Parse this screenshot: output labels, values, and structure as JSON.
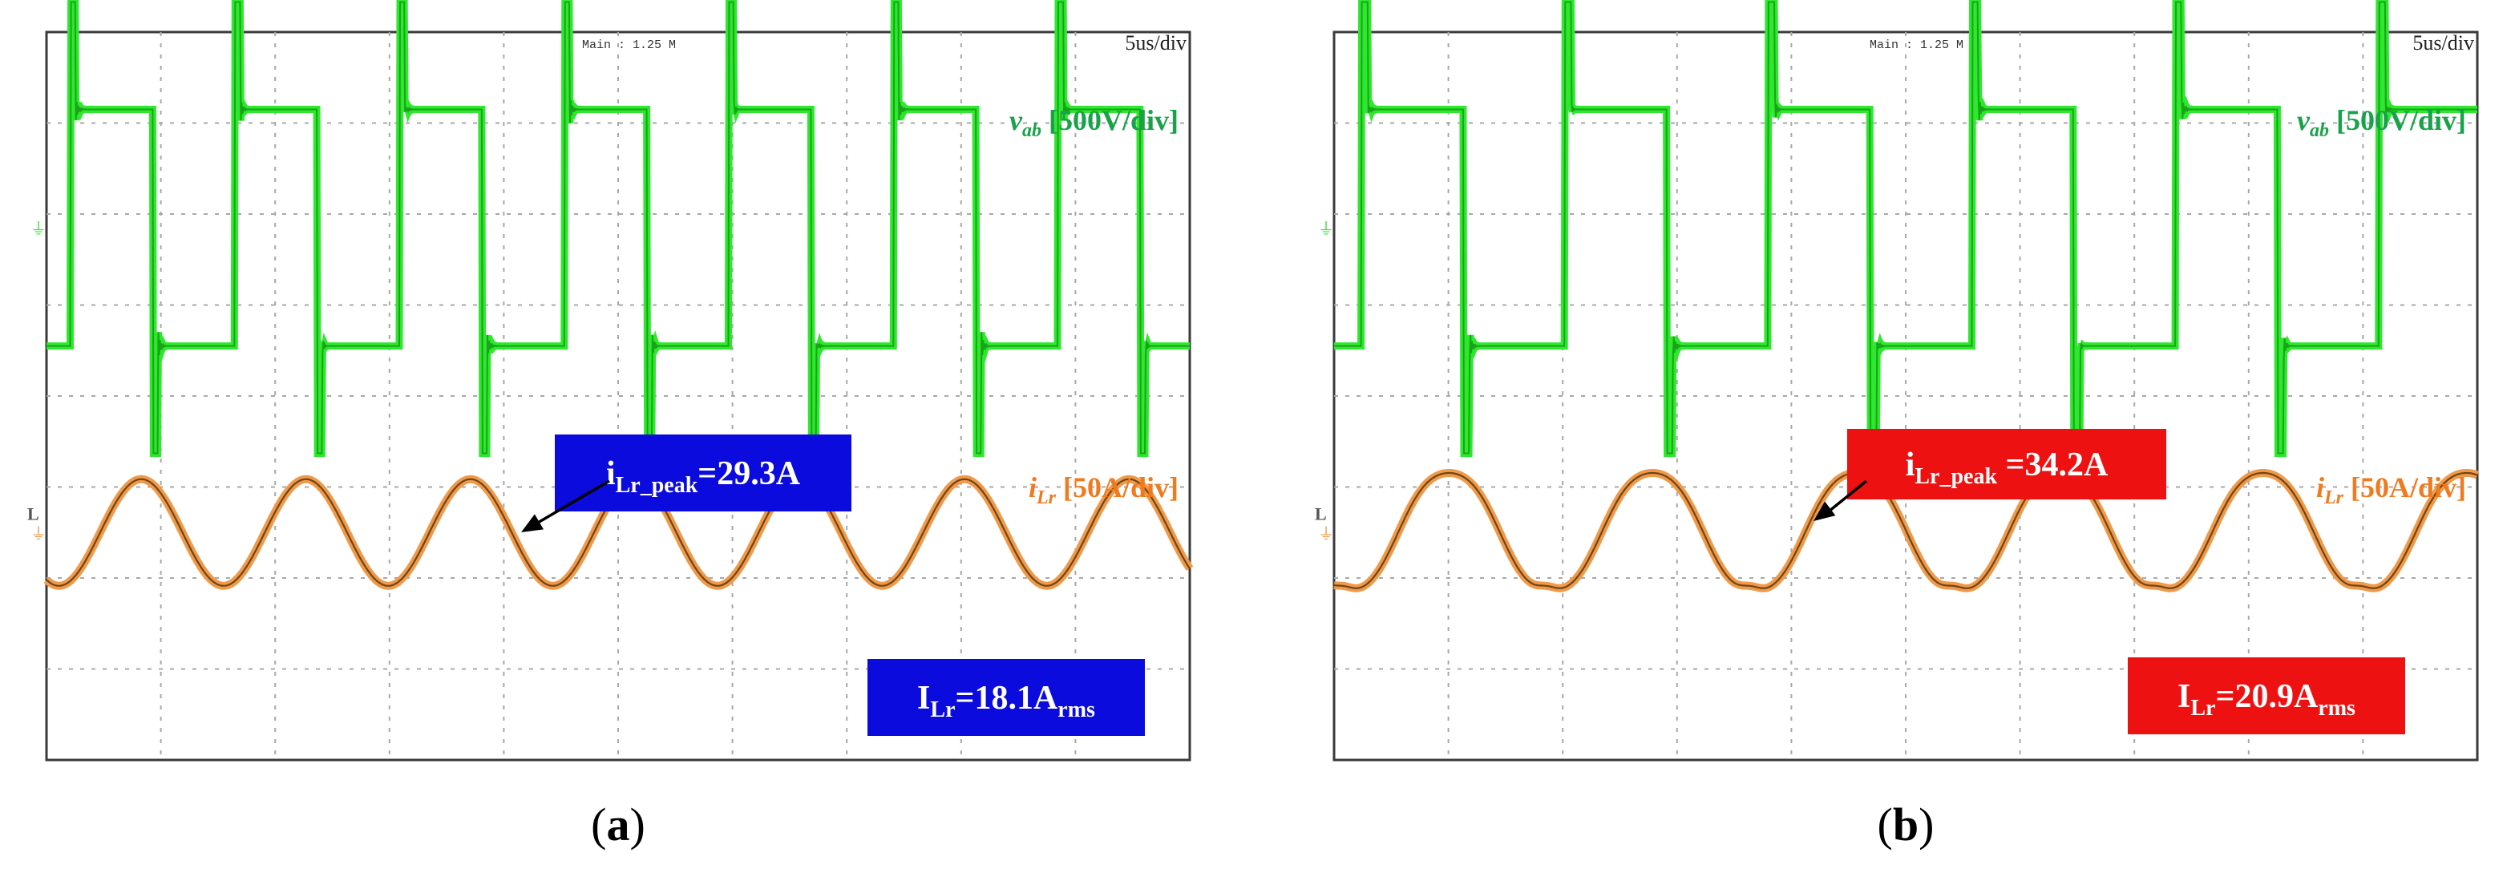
{
  "colors": {
    "background": "#ffffff",
    "screen": "#ffffff",
    "grid": "#a8a8a8",
    "border": "#3a3a3a",
    "vab_trace": "#2ee82e",
    "vab_edge": "#0a6a0a",
    "vab_label": "#19a24a",
    "ilr_trace": "#ef9a4a",
    "ilr_edge": "#3a2000",
    "ilr_label": "#f07a1e",
    "channel_marker_green": "#2ee82e",
    "channel_marker_orange": "#ef9a4a"
  },
  "chart_data": [
    {
      "type": "line",
      "panel_label": "a",
      "header": "Main : 1.25 M",
      "timebase": "5us/div",
      "grid_divisions": {
        "x": 10,
        "y": 8
      },
      "channel_markers": [
        "L",
        "⏚"
      ],
      "time_us": {
        "start": 0,
        "end": 50
      },
      "series": [
        {
          "name": "v_ab",
          "label_main": "v",
          "label_sub": "ab",
          "label_scale": "[500V/div]",
          "unit": "V",
          "scale_per_div": 500,
          "zero_div": 5.85,
          "levels_V": {
            "high": 650,
            "low": -650,
            "peak_high": 1240,
            "peak_low": -1240
          },
          "period_us": 7.2,
          "phase_us": 1.05,
          "edges": "rise to +peak, settle to high, fall to -peak, settle to low"
        },
        {
          "name": "i_Lr",
          "label_main": "i",
          "label_sub": "Lr",
          "label_scale": "[50A/div]",
          "unit": "A",
          "scale_per_div": 50,
          "zero_div": 2.5,
          "waveform": "near-sinusoidal",
          "peak_A": 29.3,
          "period_us": 7.2,
          "distortion": "none"
        }
      ],
      "annotations": [
        {
          "id": "peak",
          "text_main": "i",
          "text_sub": "Lr_peak",
          "text_value": "=29.3A",
          "box_color": "#0b0bdd",
          "text_color": "#ffffff",
          "points_to": "i_Lr maximum near 20.5 us"
        },
        {
          "id": "rms",
          "text_main": "I",
          "text_sub": "Lr",
          "text_value": "=18.1A",
          "text_value_sub": "rms",
          "box_color": "#0b0bdd",
          "text_color": "#ffffff"
        }
      ]
    },
    {
      "type": "line",
      "panel_label": "b",
      "header": "Main : 1.25 M",
      "timebase": "5us/div",
      "grid_divisions": {
        "x": 10,
        "y": 8
      },
      "channel_markers": [
        "L",
        "⏚"
      ],
      "time_us": {
        "start": 0,
        "end": 50
      },
      "series": [
        {
          "name": "v_ab",
          "label_main": "v",
          "label_sub": "ab",
          "label_scale": "[500V/div]",
          "unit": "V",
          "scale_per_div": 500,
          "zero_div": 5.85,
          "levels_V": {
            "high": 650,
            "low": -650,
            "peak_high": 1240,
            "peak_low": -1240
          },
          "period_us": 8.9,
          "phase_us": 1.2,
          "edges": "rise to +peak, settle to high, fall to -peak, settle to low"
        },
        {
          "name": "i_Lr",
          "label_main": "i",
          "label_sub": "Lr",
          "label_scale": "[50A/div]",
          "unit": "A",
          "scale_per_div": 50,
          "zero_div": 2.5,
          "waveform": "distorted sinusoid with small ripple notches",
          "peak_A": 34.2,
          "period_us": 8.9,
          "distortion": "ripple"
        }
      ],
      "annotations": [
        {
          "id": "peak",
          "text_main": "i",
          "text_sub": "Lr_peak",
          "text_value": " =34.2A",
          "box_color": "#ee1111",
          "text_color": "#ffffff",
          "points_to": "i_Lr maximum near 20 us"
        },
        {
          "id": "rms",
          "text_main": "I",
          "text_sub": "Lr",
          "text_value": "=20.9A",
          "text_value_sub": "rms",
          "box_color": "#ee1111",
          "text_color": "#ffffff"
        }
      ]
    }
  ]
}
